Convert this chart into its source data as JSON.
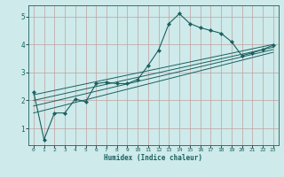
{
  "xlabel": "Humidex (Indice chaleur)",
  "bg_color": "#ceeaea",
  "grid_color": "#c0a0a0",
  "line_color": "#1a6060",
  "xlim": [
    -0.5,
    23.5
  ],
  "ylim": [
    0.4,
    5.4
  ],
  "xticks": [
    0,
    1,
    2,
    3,
    4,
    5,
    6,
    7,
    8,
    9,
    10,
    11,
    12,
    13,
    14,
    15,
    16,
    17,
    18,
    19,
    20,
    21,
    22,
    23
  ],
  "yticks": [
    1,
    2,
    3,
    4,
    5
  ],
  "main_x": [
    0,
    1,
    2,
    3,
    4,
    5,
    6,
    7,
    8,
    9,
    10,
    11,
    12,
    13,
    14,
    15,
    16,
    17,
    18,
    19,
    20,
    21,
    22,
    23
  ],
  "main_y": [
    2.3,
    0.6,
    1.55,
    1.55,
    2.05,
    1.95,
    2.6,
    2.65,
    2.6,
    2.6,
    2.75,
    3.25,
    3.8,
    4.75,
    5.1,
    4.75,
    4.6,
    4.5,
    4.4,
    4.1,
    3.6,
    3.7,
    3.82,
    3.97
  ],
  "linear_lines": [
    {
      "x": [
        0,
        23
      ],
      "y": [
        2.2,
        4.0
      ]
    },
    {
      "x": [
        0,
        23
      ],
      "y": [
        2.0,
        3.9
      ]
    },
    {
      "x": [
        0,
        23
      ],
      "y": [
        1.8,
        3.82
      ]
    },
    {
      "x": [
        0,
        23
      ],
      "y": [
        1.55,
        3.72
      ]
    }
  ]
}
